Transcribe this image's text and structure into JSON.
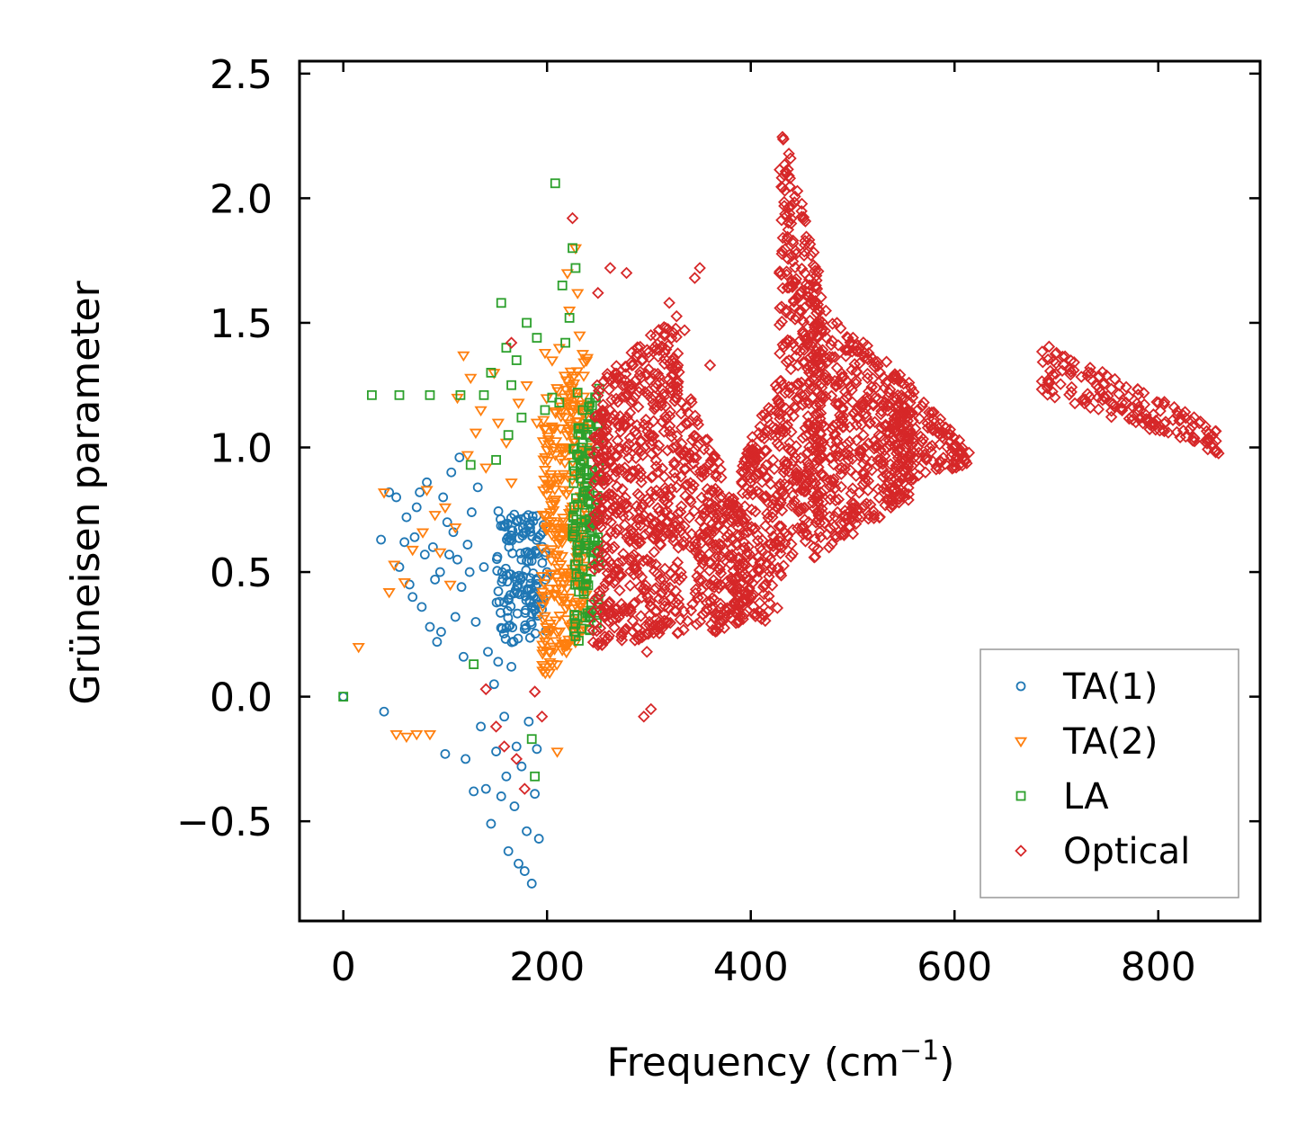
{
  "chart_data": {
    "type": "scatter",
    "title": "",
    "xlabel": "Frequency (cm",
    "xlabel_sup": "−1",
    "xlabel_tail": ")",
    "ylabel": "Grüneisen parameter",
    "xlim": [
      -43,
      900
    ],
    "ylim": [
      -0.9,
      2.55
    ],
    "x_ticks": [
      0,
      200,
      400,
      600,
      800
    ],
    "x_tick_labels": [
      "0",
      "200",
      "400",
      "600",
      "800"
    ],
    "y_ticks": [
      -0.5,
      0.0,
      0.5,
      1.0,
      1.5,
      2.0,
      2.5
    ],
    "y_tick_labels": [
      "−0.5",
      "0.0",
      "0.5",
      "1.0",
      "1.5",
      "2.0",
      "2.5"
    ],
    "grid": false,
    "legend_position": "bottom-right",
    "series": [
      {
        "name": "TA(1)",
        "marker": "circle",
        "color": "#1f77b4",
        "points": [
          [
            0,
            0.0
          ],
          [
            37,
            0.63
          ],
          [
            40,
            -0.06
          ],
          [
            45,
            0.82
          ],
          [
            52,
            0.8
          ],
          [
            55,
            0.52
          ],
          [
            60,
            0.62
          ],
          [
            62,
            0.72
          ],
          [
            65,
            0.45
          ],
          [
            68,
            0.4
          ],
          [
            70,
            0.64
          ],
          [
            72,
            0.76
          ],
          [
            75,
            0.82
          ],
          [
            77,
            0.36
          ],
          [
            80,
            0.57
          ],
          [
            82,
            0.86
          ],
          [
            85,
            0.28
          ],
          [
            88,
            0.6
          ],
          [
            90,
            0.47
          ],
          [
            92,
            0.22
          ],
          [
            95,
            0.5
          ],
          [
            96,
            0.26
          ],
          [
            98,
            0.8
          ],
          [
            100,
            -0.23
          ],
          [
            102,
            0.7
          ],
          [
            104,
            0.57
          ],
          [
            106,
            0.9
          ],
          [
            108,
            0.66
          ],
          [
            110,
            0.32
          ],
          [
            112,
            0.55
          ],
          [
            114,
            0.96
          ],
          [
            116,
            0.44
          ],
          [
            118,
            0.16
          ],
          [
            120,
            -0.25
          ],
          [
            122,
            0.61
          ],
          [
            124,
            0.5
          ],
          [
            126,
            0.74
          ],
          [
            128,
            -0.38
          ],
          [
            130,
            0.3
          ],
          [
            132,
            0.84
          ],
          [
            135,
            -0.12
          ],
          [
            138,
            0.52
          ],
          [
            140,
            -0.37
          ],
          [
            142,
            0.18
          ],
          [
            145,
            -0.51
          ],
          [
            148,
            0.05
          ],
          [
            150,
            -0.22
          ],
          [
            152,
            0.14
          ],
          [
            155,
            -0.4
          ],
          [
            158,
            -0.08
          ],
          [
            160,
            -0.32
          ],
          [
            162,
            -0.62
          ],
          [
            165,
            0.12
          ],
          [
            168,
            -0.44
          ],
          [
            170,
            -0.2
          ],
          [
            172,
            -0.67
          ],
          [
            175,
            -0.28
          ],
          [
            178,
            -0.7
          ],
          [
            180,
            -0.54
          ],
          [
            182,
            -0.1
          ],
          [
            185,
            -0.75
          ],
          [
            188,
            -0.39
          ],
          [
            190,
            -0.21
          ],
          [
            192,
            -0.57
          ],
          [
            195,
            0.35
          ],
          [
            200,
            0.5
          ]
        ]
      },
      {
        "name": "TA(2)",
        "marker": "triangle",
        "color": "#ff7f0e",
        "points": [
          [
            15,
            0.2
          ],
          [
            40,
            0.82
          ],
          [
            45,
            0.42
          ],
          [
            50,
            0.53
          ],
          [
            52,
            -0.15
          ],
          [
            60,
            0.46
          ],
          [
            62,
            -0.16
          ],
          [
            68,
            0.59
          ],
          [
            72,
            -0.15
          ],
          [
            78,
            0.66
          ],
          [
            82,
            0.83
          ],
          [
            85,
            -0.15
          ],
          [
            90,
            0.73
          ],
          [
            95,
            0.58
          ],
          [
            100,
            0.76
          ],
          [
            105,
            0.45
          ],
          [
            110,
            0.68
          ],
          [
            112,
            1.2
          ],
          [
            118,
            1.37
          ],
          [
            122,
            0.97
          ],
          [
            125,
            1.28
          ],
          [
            130,
            1.06
          ],
          [
            135,
            1.15
          ],
          [
            140,
            0.92
          ],
          [
            148,
            1.3
          ],
          [
            152,
            1.1
          ],
          [
            160,
            1.02
          ],
          [
            165,
            0.86
          ],
          [
            172,
            1.18
          ],
          [
            180,
            1.25
          ],
          [
            190,
            1.1
          ],
          [
            198,
            1.38
          ],
          [
            205,
            1.35
          ],
          [
            210,
            -0.22
          ],
          [
            212,
            1.4
          ],
          [
            215,
            0.68
          ],
          [
            218,
            1.0
          ],
          [
            220,
            1.7
          ],
          [
            222,
            1.55
          ],
          [
            225,
            1.28
          ],
          [
            228,
            1.8
          ],
          [
            230,
            1.62
          ],
          [
            232,
            1.45
          ]
        ]
      },
      {
        "name": "LA",
        "marker": "square",
        "color": "#2ca02c",
        "points": [
          [
            0,
            0.0
          ],
          [
            28,
            1.21
          ],
          [
            55,
            1.21
          ],
          [
            85,
            1.21
          ],
          [
            115,
            1.21
          ],
          [
            125,
            0.93
          ],
          [
            128,
            0.13
          ],
          [
            138,
            1.21
          ],
          [
            145,
            1.3
          ],
          [
            150,
            0.95
          ],
          [
            155,
            1.58
          ],
          [
            160,
            1.4
          ],
          [
            162,
            1.05
          ],
          [
            165,
            1.25
          ],
          [
            170,
            1.35
          ],
          [
            175,
            1.12
          ],
          [
            180,
            1.5
          ],
          [
            185,
            -0.17
          ],
          [
            188,
            -0.32
          ],
          [
            190,
            1.44
          ],
          [
            198,
            1.15
          ],
          [
            205,
            1.2
          ],
          [
            208,
            2.06
          ],
          [
            212,
            1.18
          ],
          [
            215,
            1.65
          ],
          [
            218,
            1.42
          ],
          [
            222,
            1.52
          ],
          [
            225,
            1.8
          ],
          [
            228,
            1.72
          ],
          [
            230,
            1.22
          ],
          [
            235,
            1.15
          ],
          [
            238,
            1.05
          ],
          [
            242,
            1.12
          ],
          [
            248,
            1.2
          ]
        ]
      },
      {
        "name": "Optical",
        "marker": "diamond",
        "color": "#d62728",
        "points": [
          [
            140,
            0.03
          ],
          [
            150,
            -0.12
          ],
          [
            158,
            -0.2
          ],
          [
            165,
            1.42
          ],
          [
            170,
            -0.25
          ],
          [
            178,
            -0.37
          ],
          [
            188,
            0.02
          ],
          [
            195,
            -0.08
          ],
          [
            225,
            1.92
          ],
          [
            250,
            1.62
          ],
          [
            262,
            1.72
          ],
          [
            278,
            1.7
          ],
          [
            280,
            0.35
          ],
          [
            290,
            0.23
          ],
          [
            295,
            -0.08
          ],
          [
            298,
            0.18
          ],
          [
            302,
            -0.05
          ],
          [
            310,
            0.3
          ],
          [
            320,
            1.58
          ],
          [
            335,
            1.47
          ],
          [
            345,
            1.68
          ],
          [
            350,
            1.72
          ],
          [
            360,
            1.33
          ],
          [
            370,
            0.45
          ],
          [
            375,
            0.32
          ]
        ]
      }
    ],
    "dense_regions": [
      {
        "series": "TA(1)",
        "x_from": 150,
        "x_to": 200,
        "y_low_from": 0.2,
        "y_low_to": 0.25,
        "y_high_from": 0.75,
        "y_high_to": 0.72
      },
      {
        "series": "TA(2)",
        "x_from": 195,
        "x_to": 240,
        "y_low_from": 0.05,
        "y_low_to": 0.28,
        "y_high_from": 1.2,
        "y_high_to": 1.4
      },
      {
        "series": "LA",
        "x_from": 225,
        "x_to": 252,
        "y_low_from": 0.2,
        "y_low_to": 0.3,
        "y_high_from": 1.05,
        "y_high_to": 1.3
      },
      {
        "series": "Optical",
        "x_from": 245,
        "x_to": 330,
        "y_low_from": 0.2,
        "y_low_to": 0.25,
        "y_high_from": 1.25,
        "y_high_to": 1.55
      },
      {
        "series": "Optical",
        "x_from": 330,
        "x_to": 390,
        "y_low_from": 0.2,
        "y_low_to": 0.3,
        "y_high_from": 1.3,
        "y_high_to": 0.75
      },
      {
        "series": "Optical",
        "x_from": 390,
        "x_to": 430,
        "y_low_from": 0.3,
        "y_low_to": 0.3,
        "y_high_from": 0.95,
        "y_high_to": 1.3
      },
      {
        "series": "Optical",
        "x_from": 428,
        "x_to": 470,
        "y_low_from": 0.5,
        "y_low_to": 0.7,
        "y_high_from": 2.35,
        "y_high_to": 1.65
      },
      {
        "series": "Optical",
        "x_from": 460,
        "x_to": 560,
        "y_low_from": 0.55,
        "y_low_to": 0.8,
        "y_high_from": 1.6,
        "y_high_to": 1.25
      },
      {
        "series": "Optical",
        "x_from": 540,
        "x_to": 615,
        "y_low_from": 0.85,
        "y_low_to": 0.93,
        "y_high_from": 1.3,
        "y_high_to": 1.0
      },
      {
        "series": "Optical",
        "x_from": 685,
        "x_to": 860,
        "y_low_from": 1.22,
        "y_low_to": 0.97,
        "y_high_from": 1.42,
        "y_high_to": 1.08
      }
    ]
  }
}
